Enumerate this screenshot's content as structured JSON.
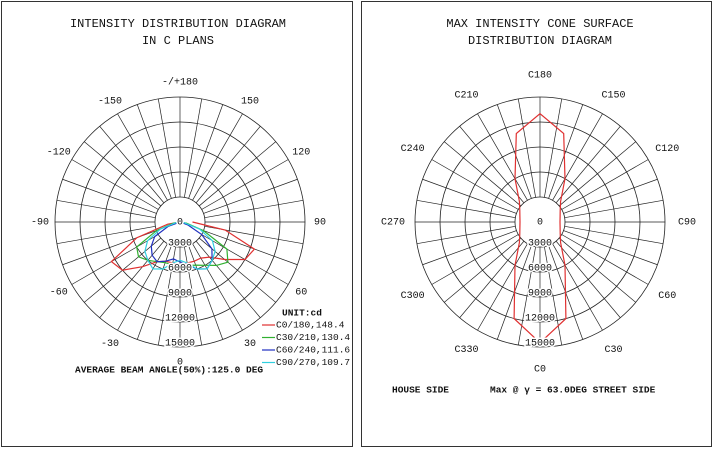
{
  "chart_data": [
    {
      "type": "polar",
      "title": [
        "INTENSITY DISTRIBUTION DIAGRAM",
        "IN C PLANS"
      ],
      "theta_zero": "bottom",
      "theta_direction": "counterclockwise",
      "rlim": [
        0,
        15000
      ],
      "rticks": [
        0,
        3000,
        6000,
        9000,
        12000,
        15000
      ],
      "thetaticks": [
        {
          "value": 180,
          "label": "-/+180"
        },
        150,
        120,
        90,
        60,
        30,
        0,
        -30,
        -60,
        -90,
        -120,
        -150
      ],
      "unit": "UNIT:cd",
      "theta": [
        -90,
        -80,
        -70,
        -60,
        -50,
        -40,
        -30,
        -20,
        -10,
        0,
        10,
        20,
        30,
        40,
        50,
        60,
        70,
        80,
        90
      ],
      "series": [
        {
          "name": "C0/180,148.4",
          "color": "#e03030",
          "values": [
            0,
            1500,
            5500,
            9500,
            9000,
            7000,
            5500,
            5000,
            5000,
            5200,
            5000,
            5000,
            5000,
            5500,
            7000,
            9000,
            9500,
            5500,
            1500
          ]
        },
        {
          "name": "C30/210,130.4",
          "color": "#30b030",
          "values": [
            0,
            800,
            3000,
            6000,
            6500,
            6000,
            5500,
            5200,
            5200,
            5300,
            5300,
            5500,
            6000,
            6800,
            7500,
            6500,
            3000,
            800,
            0
          ]
        },
        {
          "name": "C60/240,111.6",
          "color": "#2030c0",
          "values": [
            0,
            0,
            1500,
            3500,
            4500,
            5200,
            5500,
            5000,
            4500,
            4800,
            5200,
            6000,
            6500,
            6000,
            5000,
            3000,
            1000,
            0,
            0
          ]
        },
        {
          "name": "C90/270,109.7",
          "color": "#30d0e0",
          "values": [
            0,
            500,
            2500,
            4500,
            5500,
            6000,
            6500,
            6000,
            5000,
            4600,
            5000,
            6000,
            6500,
            6000,
            5500,
            4500,
            2500,
            500,
            0
          ]
        }
      ],
      "annotations": [
        "AVERAGE BEAM ANGLE(50%):125.0 DEG"
      ]
    },
    {
      "type": "polar",
      "title": [
        "MAX INTENSITY CONE SURFACE",
        "DISTRIBUTION DIAGRAM"
      ],
      "theta_zero": "bottom",
      "theta_direction": "counterclockwise",
      "rlim": [
        0,
        15000
      ],
      "rticks": [
        0,
        3000,
        6000,
        9000,
        12000,
        15000
      ],
      "thetaticks": [
        {
          "value": 0,
          "label": "C0"
        },
        {
          "value": 30,
          "label": "C30"
        },
        {
          "value": 60,
          "label": "C60"
        },
        {
          "value": 90,
          "label": "C90"
        },
        {
          "value": 120,
          "label": "C120"
        },
        {
          "value": 150,
          "label": "C150"
        },
        {
          "value": 180,
          "label": "C180"
        },
        {
          "value": 210,
          "label": "C210"
        },
        {
          "value": 240,
          "label": "C240"
        },
        {
          "value": 270,
          "label": "C270"
        },
        {
          "value": 300,
          "label": "C300"
        },
        {
          "value": 330,
          "label": "C330"
        }
      ],
      "theta": [
        0,
        15,
        30,
        45,
        60,
        75,
        90,
        105,
        120,
        135,
        150,
        165,
        180,
        195,
        210,
        225,
        240,
        255,
        270,
        285,
        300,
        315,
        330,
        345
      ],
      "series": [
        {
          "color": "#e03030",
          "closed": true,
          "values": [
            14500,
            12000,
            6000,
            3500,
            2800,
            2500,
            2400,
            2500,
            2800,
            3500,
            6000,
            11000,
            13000,
            11000,
            6000,
            3500,
            2800,
            2500,
            2400,
            2500,
            2800,
            3500,
            6000,
            12000
          ]
        }
      ],
      "annotations": [
        "HOUSE SIDE",
        "Max @ γ = 63.0DEG STREET SIDE"
      ]
    }
  ]
}
